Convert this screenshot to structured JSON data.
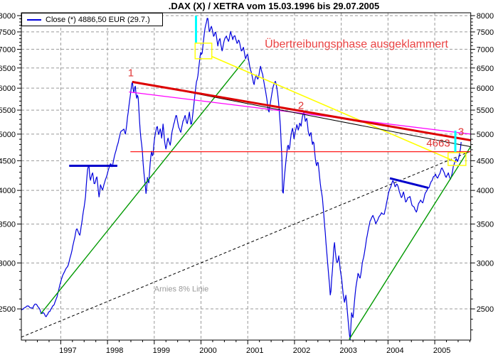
{
  "chart_data": {
    "type": "line",
    "title": ".DAX (X) / XETRA vom 15.03.1996 bis 29.07.2005",
    "legend": {
      "label": "Close (*) 4886,50 EUR (29.7.)",
      "series_color": "#0000dd",
      "position": "top-left"
    },
    "y_scale": "log",
    "grid": "dashed",
    "colors": {
      "price": "#0000dd",
      "grid": "#999999",
      "axis": "#000000",
      "background": "#ffffff"
    },
    "x_axis": {
      "range": [
        1996.157,
        2005.77
      ],
      "ticks": [
        1997,
        1998,
        1999,
        2000,
        2001,
        2002,
        2003,
        2004,
        2005
      ],
      "minor_step": 0.25
    },
    "y_axis": {
      "range": [
        2209,
        8091
      ],
      "ticks": [
        8000,
        7500,
        7000,
        6500,
        6000,
        5500,
        5000,
        4500,
        4000,
        3500,
        3000,
        2500
      ],
      "minor_step": 100,
      "minor_from": 2300
    },
    "series": [
      {
        "name": "Close",
        "color": "#0000dd",
        "width": 1.2,
        "points": [
          [
            1996.16,
            2486
          ],
          [
            1996.23,
            2505
          ],
          [
            1996.31,
            2530
          ],
          [
            1996.39,
            2500
          ],
          [
            1996.46,
            2555
          ],
          [
            1996.54,
            2510
          ],
          [
            1996.58,
            2465
          ],
          [
            1996.64,
            2475
          ],
          [
            1996.69,
            2440
          ],
          [
            1996.74,
            2490
          ],
          [
            1996.8,
            2515
          ],
          [
            1996.86,
            2560
          ],
          [
            1996.92,
            2630
          ],
          [
            1996.99,
            2760
          ],
          [
            1997.04,
            2850
          ],
          [
            1997.1,
            2920
          ],
          [
            1997.16,
            2980
          ],
          [
            1997.22,
            3120
          ],
          [
            1997.28,
            3280
          ],
          [
            1997.34,
            3440
          ],
          [
            1997.41,
            3330
          ],
          [
            1997.47,
            3600
          ],
          [
            1997.53,
            3900
          ],
          [
            1997.57,
            4330
          ],
          [
            1997.6,
            4438
          ],
          [
            1997.63,
            4150
          ],
          [
            1997.68,
            4280
          ],
          [
            1997.72,
            4070
          ],
          [
            1997.77,
            4250
          ],
          [
            1997.82,
            3885
          ],
          [
            1997.85,
            4080
          ],
          [
            1997.89,
            4000
          ],
          [
            1997.94,
            4150
          ],
          [
            1997.98,
            4250
          ],
          [
            1998.03,
            4380
          ],
          [
            1998.07,
            4480
          ],
          [
            1998.1,
            4410
          ],
          [
            1998.17,
            4660
          ],
          [
            1998.23,
            4850
          ],
          [
            1998.29,
            5050
          ],
          [
            1998.35,
            5100
          ],
          [
            1998.38,
            5000
          ],
          [
            1998.41,
            5200
          ],
          [
            1998.44,
            5450
          ],
          [
            1998.49,
            5850
          ],
          [
            1998.53,
            6171
          ],
          [
            1998.56,
            5850
          ],
          [
            1998.59,
            6080
          ],
          [
            1998.62,
            5750
          ],
          [
            1998.65,
            5900
          ],
          [
            1998.68,
            5350
          ],
          [
            1998.71,
            4950
          ],
          [
            1998.74,
            4750
          ],
          [
            1998.77,
            4350
          ],
          [
            1998.81,
            4050
          ],
          [
            1998.83,
            3890
          ],
          [
            1998.85,
            4230
          ],
          [
            1998.88,
            4100
          ],
          [
            1998.91,
            4450
          ],
          [
            1998.94,
            4700
          ],
          [
            1998.97,
            4560
          ],
          [
            1999.0,
            4900
          ],
          [
            1999.03,
            5050
          ],
          [
            1999.06,
            5200
          ],
          [
            1999.09,
            5000
          ],
          [
            1999.13,
            5150
          ],
          [
            1999.16,
            4950
          ],
          [
            1999.19,
            5250
          ],
          [
            1999.22,
            4860
          ],
          [
            1999.25,
            4700
          ],
          [
            1999.29,
            4930
          ],
          [
            1999.34,
            4770
          ],
          [
            1999.38,
            5050
          ],
          [
            1999.43,
            5230
          ],
          [
            1999.47,
            5430
          ],
          [
            1999.52,
            5150
          ],
          [
            1999.57,
            5050
          ],
          [
            1999.61,
            5260
          ],
          [
            1999.66,
            5400
          ],
          [
            1999.7,
            5210
          ],
          [
            1999.75,
            5480
          ],
          [
            1999.79,
            5150
          ],
          [
            1999.84,
            5530
          ],
          [
            1999.87,
            5850
          ],
          [
            1999.9,
            6120
          ],
          [
            1999.93,
            6280
          ],
          [
            1999.96,
            6550
          ],
          [
            1999.99,
            6950
          ],
          [
            2000.02,
            6850
          ],
          [
            2000.05,
            7250
          ],
          [
            2000.08,
            7600
          ],
          [
            2000.11,
            7750
          ],
          [
            2000.14,
            7980
          ],
          [
            2000.18,
            7480
          ],
          [
            2000.22,
            7700
          ],
          [
            2000.27,
            7350
          ],
          [
            2000.31,
            7550
          ],
          [
            2000.36,
            7100
          ],
          [
            2000.4,
            7350
          ],
          [
            2000.45,
            6930
          ],
          [
            2000.49,
            7180
          ],
          [
            2000.54,
            7400
          ],
          [
            2000.59,
            7250
          ],
          [
            2000.63,
            7530
          ],
          [
            2000.68,
            7280
          ],
          [
            2000.72,
            7450
          ],
          [
            2000.77,
            7150
          ],
          [
            2000.81,
            7300
          ],
          [
            2000.86,
            6950
          ],
          [
            2000.91,
            7050
          ],
          [
            2000.95,
            6750
          ],
          [
            2001.0,
            6850
          ],
          [
            2001.04,
            6550
          ],
          [
            2001.09,
            6300
          ],
          [
            2001.13,
            6050
          ],
          [
            2001.18,
            6350
          ],
          [
            2001.22,
            6200
          ],
          [
            2001.27,
            6600
          ],
          [
            2001.32,
            6350
          ],
          [
            2001.36,
            6050
          ],
          [
            2001.41,
            5750
          ],
          [
            2001.45,
            5420
          ],
          [
            2001.5,
            5750
          ],
          [
            2001.54,
            6000
          ],
          [
            2001.59,
            6150
          ],
          [
            2001.64,
            5850
          ],
          [
            2001.67,
            5550
          ],
          [
            2001.7,
            5150
          ],
          [
            2001.73,
            4550
          ],
          [
            2001.75,
            3800
          ],
          [
            2001.77,
            4100
          ],
          [
            2001.8,
            4350
          ],
          [
            2001.83,
            4600
          ],
          [
            2001.86,
            4800
          ],
          [
            2001.89,
            4640
          ],
          [
            2001.92,
            4950
          ],
          [
            2001.96,
            5100
          ],
          [
            2001.99,
            4900
          ],
          [
            2002.02,
            5050
          ],
          [
            2002.05,
            5180
          ],
          [
            2002.08,
            5050
          ],
          [
            2002.11,
            5200
          ],
          [
            2002.14,
            5120
          ],
          [
            2002.17,
            5350
          ],
          [
            2002.2,
            5460
          ],
          [
            2002.23,
            5250
          ],
          [
            2002.26,
            5350
          ],
          [
            2002.29,
            5100
          ],
          [
            2002.32,
            4950
          ],
          [
            2002.35,
            5080
          ],
          [
            2002.38,
            4800
          ],
          [
            2002.41,
            4880
          ],
          [
            2002.44,
            4580
          ],
          [
            2002.47,
            4400
          ],
          [
            2002.5,
            4520
          ],
          [
            2002.53,
            4280
          ],
          [
            2002.56,
            4050
          ],
          [
            2002.6,
            3850
          ],
          [
            2002.63,
            3580
          ],
          [
            2002.66,
            3350
          ],
          [
            2002.69,
            3120
          ],
          [
            2002.72,
            2920
          ],
          [
            2002.75,
            2740
          ],
          [
            2002.77,
            2598
          ],
          [
            2002.79,
            2780
          ],
          [
            2002.82,
            2980
          ],
          [
            2002.85,
            3280
          ],
          [
            2002.88,
            3100
          ],
          [
            2002.91,
            2990
          ],
          [
            2002.95,
            3100
          ],
          [
            2002.98,
            2920
          ],
          [
            2003.01,
            2810
          ],
          [
            2003.04,
            2660
          ],
          [
            2003.07,
            2560
          ],
          [
            2003.1,
            2650
          ],
          [
            2003.13,
            2480
          ],
          [
            2003.16,
            2330
          ],
          [
            2003.19,
            2202
          ],
          [
            2003.22,
            2470
          ],
          [
            2003.25,
            2400
          ],
          [
            2003.28,
            2560
          ],
          [
            2003.31,
            2720
          ],
          [
            2003.36,
            2890
          ],
          [
            2003.4,
            2810
          ],
          [
            2003.45,
            3010
          ],
          [
            2003.49,
            3110
          ],
          [
            2003.55,
            3330
          ],
          [
            2003.62,
            3550
          ],
          [
            2003.68,
            3620
          ],
          [
            2003.74,
            3500
          ],
          [
            2003.8,
            3580
          ],
          [
            2003.86,
            3650
          ],
          [
            2003.92,
            3620
          ],
          [
            2003.97,
            3800
          ],
          [
            2004.01,
            3960
          ],
          [
            2004.06,
            4050
          ],
          [
            2004.1,
            4150
          ],
          [
            2004.15,
            4050
          ],
          [
            2004.19,
            4120
          ],
          [
            2004.24,
            3980
          ],
          [
            2004.29,
            3880
          ],
          [
            2004.33,
            3990
          ],
          [
            2004.38,
            3820
          ],
          [
            2004.42,
            3900
          ],
          [
            2004.47,
            3920
          ],
          [
            2004.51,
            3780
          ],
          [
            2004.56,
            3720
          ],
          [
            2004.61,
            3650
          ],
          [
            2004.65,
            3780
          ],
          [
            2004.7,
            3850
          ],
          [
            2004.74,
            3800
          ],
          [
            2004.79,
            3920
          ],
          [
            2004.83,
            4000
          ],
          [
            2004.88,
            4050
          ],
          [
            2004.93,
            4160
          ],
          [
            2004.97,
            4220
          ],
          [
            2005.02,
            4260
          ],
          [
            2005.06,
            4200
          ],
          [
            2005.11,
            4280
          ],
          [
            2005.15,
            4380
          ],
          [
            2005.2,
            4300
          ],
          [
            2005.24,
            4200
          ],
          [
            2005.29,
            4280
          ],
          [
            2005.34,
            4180
          ],
          [
            2005.37,
            4290
          ],
          [
            2005.4,
            4420
          ],
          [
            2005.43,
            4480
          ],
          [
            2005.46,
            4540
          ],
          [
            2005.49,
            4480
          ],
          [
            2005.52,
            4560
          ],
          [
            2005.55,
            4700
          ],
          [
            2005.57,
            4886.5
          ]
        ]
      }
    ],
    "trendlines": [
      {
        "name": "arnies-8-percent-line",
        "color": "#000000",
        "width": 1,
        "dash": "4,3",
        "layer": "back",
        "from": [
          1996.157,
          2235
        ],
        "to": [
          2005.77,
          4673
        ]
      },
      {
        "name": "resistance-1997-1998",
        "color": "#0000cc",
        "width": 3,
        "from": [
          1997.18,
          4410
        ],
        "to": [
          1998.21,
          4410
        ]
      },
      {
        "name": "resistance-2004",
        "color": "#0000cc",
        "width": 3,
        "from": [
          2004.04,
          4197
        ],
        "to": [
          2004.86,
          4041
        ]
      },
      {
        "name": "support-1996-2000-green",
        "color": "#009900",
        "width": 1.4,
        "from": [
          1996.57,
          2450
        ],
        "to": [
          2000.94,
          6720
        ]
      },
      {
        "name": "support-2003-2005-green",
        "color": "#009900",
        "width": 1.4,
        "from": [
          2003.17,
          2215
        ],
        "to": [
          2005.77,
          4760
        ]
      },
      {
        "name": "downtrend-yellow",
        "color": "#ffff00",
        "width": 1.6,
        "from": [
          2000.24,
          6800
        ],
        "to": [
          2005.47,
          4473
        ]
      },
      {
        "name": "downtrend-magenta",
        "color": "#ff00ff",
        "width": 1.3,
        "from": [
          1998.46,
          5910
        ],
        "to": [
          2005.77,
          5000
        ]
      },
      {
        "name": "downtrend-black",
        "color": "#000000",
        "width": 1,
        "from": [
          1998.53,
          6165
        ],
        "to": [
          2005.77,
          4757
        ]
      },
      {
        "name": "downtrend-red-main",
        "color": "#dd0000",
        "width": 3,
        "from": [
          1998.53,
          6150
        ],
        "to": [
          2005.77,
          4880
        ]
      },
      {
        "name": "horizontal-4663",
        "color": "#ff0000",
        "width": 1.2,
        "from": [
          1998.49,
          4663
        ],
        "to": [
          2005.77,
          4663
        ]
      }
    ],
    "vlines": [
      {
        "name": "cyan-marker-2000",
        "color": "#00ffff",
        "width": 3,
        "year": 1999.893,
        "value_from": 7190,
        "value_to": 8000
      },
      {
        "name": "cyan-marker-2005",
        "color": "#00ffff",
        "width": 3,
        "year": 2005.44,
        "value_from": 4660,
        "value_to": 5070
      }
    ],
    "boxes": [
      {
        "name": "yellow-box-2000-top",
        "color": "#ffff00",
        "x_from": 1999.874,
        "x_to": 2000.231,
        "value_from": 6742,
        "value_to": 7173
      },
      {
        "name": "yellow-box-2005",
        "color": "#ffff00",
        "x_from": 2005.285,
        "x_to": 2005.666,
        "value_from": 4416,
        "value_to": 4646
      }
    ],
    "annotations": [
      {
        "text": "1",
        "color": "#e03535",
        "size": 15,
        "year": 1998.5,
        "value": 6370
      },
      {
        "text": "2",
        "color": "#e03535",
        "size": 15,
        "year": 2002.138,
        "value": 5595
      },
      {
        "text": "3",
        "color": "#e03535",
        "size": 15,
        "year": 2005.562,
        "value": 5040
      },
      {
        "text": "4663",
        "color": "#e03535",
        "size": 15,
        "year": 2005.075,
        "value": 4818
      },
      {
        "text": "Übertreibungsphase ausgeklammert",
        "color": "#ea4343",
        "size": 16,
        "year": 2003.325,
        "value": 7127
      },
      {
        "text": "Arnies 8% Linie",
        "color": "#999999",
        "size": 11,
        "year": 1999.581,
        "value": 2698
      }
    ]
  }
}
